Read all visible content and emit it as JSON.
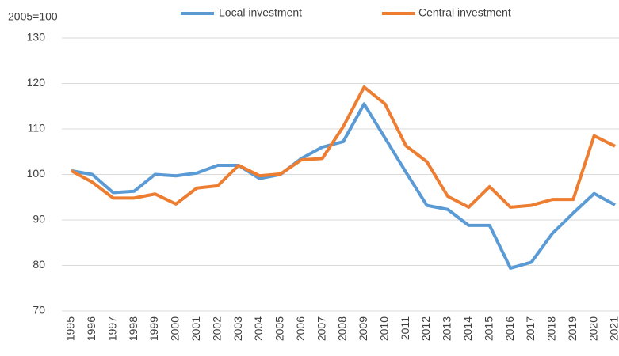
{
  "chart_data": {
    "type": "line",
    "y_axis_label": "2005=100",
    "categories": [
      "1995",
      "1996",
      "1997",
      "1998",
      "1999",
      "2000",
      "2001",
      "2002",
      "2003",
      "2004",
      "2005",
      "2006",
      "2007",
      "2008",
      "2009",
      "2010",
      "2011",
      "2012",
      "2013",
      "2014",
      "2015",
      "2016",
      "2017",
      "2018",
      "2019",
      "2020",
      "2021"
    ],
    "series": [
      {
        "name": "Local investment",
        "color": "#5b9bd5",
        "values": [
          100.8,
          100,
          96,
          96.3,
          100,
          99.7,
          100.3,
          102,
          102,
          99.1,
          100,
          103.5,
          106,
          107.2,
          115.5,
          108,
          100.5,
          93.2,
          92.3,
          88.8,
          88.8,
          79.4,
          80.7,
          87,
          91.5,
          95.8,
          93.3
        ]
      },
      {
        "name": "Central investment",
        "color": "#ed7d31",
        "values": [
          100.8,
          98.3,
          94.8,
          94.8,
          95.7,
          93.5,
          97,
          97.5,
          102,
          99.7,
          100.1,
          103.2,
          103.5,
          110.5,
          119.2,
          115.5,
          106.3,
          102.8,
          95.2,
          92.8,
          97.3,
          92.8,
          93.2,
          94.5,
          94.5,
          108.5,
          106.2
        ]
      }
    ],
    "ylim": [
      70,
      130
    ],
    "yticks": [
      70,
      80,
      90,
      100,
      110,
      120,
      130
    ],
    "grid": true,
    "legend": "top"
  }
}
